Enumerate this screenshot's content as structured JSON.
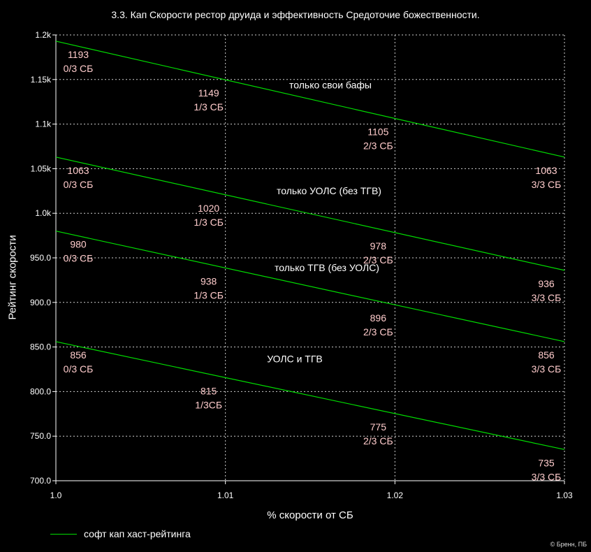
{
  "chart_data": {
    "type": "line",
    "title": "3.3. Кап Скорости рестор друида и эффективность Средоточие божественности.",
    "xlabel": "% скорости от СБ",
    "ylabel": "Рейтинг скорости",
    "xlim": [
      1.0,
      1.03
    ],
    "ylim": [
      700,
      1200
    ],
    "x_ticks": [
      1.0,
      1.01,
      1.02,
      1.03
    ],
    "x_tick_labels": [
      "1.0",
      "1.01",
      "1.02",
      "1.03"
    ],
    "y_ticks": [
      700,
      750,
      800,
      850,
      900,
      950,
      1000,
      1050,
      1100,
      1150,
      1200
    ],
    "y_tick_labels": [
      "700.0",
      "750.0",
      "800.0",
      "850.0",
      "900.0",
      "950.0",
      "1.0k",
      "1.05k",
      "1.1k",
      "1.15k",
      "1.2k"
    ],
    "grid": true,
    "line_color": "#00dd00",
    "label_color": "#ffcccc",
    "legend": {
      "position": "bottom-left",
      "entries": [
        "софт кап хаст-рейтинга"
      ]
    },
    "credit": "© Бренн, ПБ",
    "series": [
      {
        "name": "только свои бафы",
        "x": [
          1.0,
          1.03
        ],
        "y": [
          1193,
          1063
        ],
        "points": [
          {
            "x": 1.0,
            "value": "1193",
            "sub": "0/3 СБ"
          },
          {
            "x": 1.01,
            "value": "1149",
            "sub": "1/3 СБ"
          },
          {
            "x": 1.02,
            "value": "1105",
            "sub": "2/3 СБ"
          },
          {
            "x": 1.03,
            "value": "1063",
            "sub": "3/3 СБ"
          }
        ]
      },
      {
        "name": "только УОЛС (без ТГВ)",
        "x": [
          1.0,
          1.03
        ],
        "y": [
          1063,
          936
        ],
        "points": [
          {
            "x": 1.0,
            "value": "1063",
            "sub": "0/3 СБ"
          },
          {
            "x": 1.01,
            "value": "1020",
            "sub": "1/3 СБ"
          },
          {
            "x": 1.02,
            "value": "978",
            "sub": "2/3 СБ"
          },
          {
            "x": 1.03,
            "value": "936",
            "sub": "3/3 СБ"
          }
        ]
      },
      {
        "name": "только ТГВ (без УОЛС)",
        "x": [
          1.0,
          1.03
        ],
        "y": [
          980,
          856
        ],
        "points": [
          {
            "x": 1.0,
            "value": "980",
            "sub": "0/3 СБ"
          },
          {
            "x": 1.01,
            "value": "938",
            "sub": "1/3 СБ"
          },
          {
            "x": 1.02,
            "value": "896",
            "sub": "2/3 СБ"
          },
          {
            "x": 1.03,
            "value": "856",
            "sub": "3/3 СБ"
          }
        ]
      },
      {
        "name": "УОЛС и ТГВ",
        "x": [
          1.0,
          1.03
        ],
        "y": [
          856,
          735
        ],
        "points": [
          {
            "x": 1.0,
            "value": "856",
            "sub": "0/3 СБ"
          },
          {
            "x": 1.01,
            "value": "815",
            "sub": "1/3СБ"
          },
          {
            "x": 1.02,
            "value": "775",
            "sub": "2/3 СБ"
          },
          {
            "x": 1.03,
            "value": "735",
            "sub": "3/3 СБ"
          }
        ]
      }
    ]
  }
}
